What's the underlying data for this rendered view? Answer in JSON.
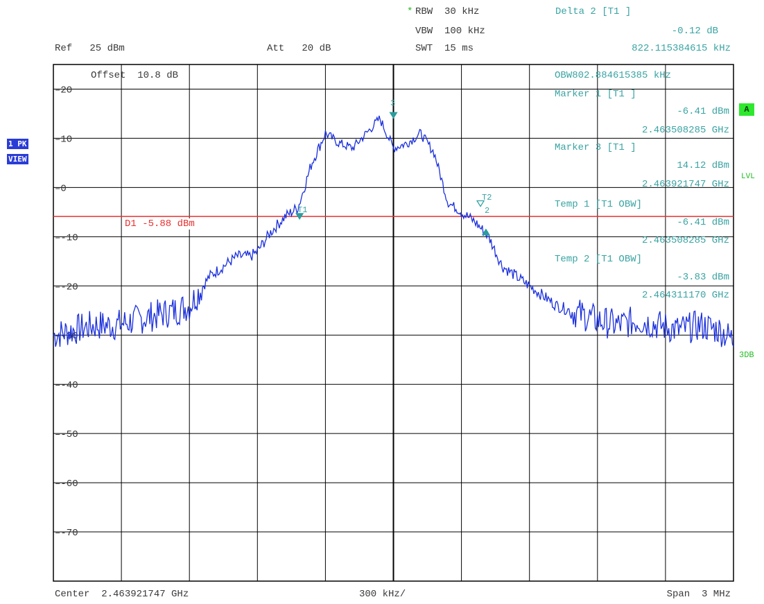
{
  "header": {
    "rbw_star": "*",
    "rbw": "RBW  30 kHz",
    "vbw": "VBW  100 kHz",
    "swt": "SWT  15 ms",
    "ref": "Ref   25 dBm",
    "att": "Att   20 dB"
  },
  "marker_panel": {
    "delta_title": "Delta 2 [T1 ]",
    "delta_value": "-0.12 dB",
    "delta_freq": "822.115384615 kHz",
    "obw": "OBW802.884615385 kHz",
    "m1_title": "Marker 1 [T1 ]",
    "m1_value": "-6.41 dBm",
    "m1_freq": "2.463508285 GHz",
    "m3_title": "Marker 3 [T1 ]",
    "m3_value": "14.12 dBm",
    "m3_freq": "2.463921747 GHz",
    "t1_title": "Temp 1 [T1 OBW]",
    "t1_value": "-6.41 dBm",
    "t1_freq": "2.463508285 GHz",
    "t2_title": "Temp 2 [T1 OBW]",
    "t2_value": "-3.83 dBm",
    "t2_freq": "2.464311170 GHz"
  },
  "plot_labels": {
    "offset": "Offset  10.8 dB",
    "display_line": "D1 -5.88 dBm",
    "marker_3": "3",
    "marker_t1": "T1",
    "marker_t2": "T2",
    "marker_2": "2"
  },
  "side": {
    "trace_mode": "1 PK",
    "view": "VIEW",
    "a_badge": "A",
    "lvl": "LVL",
    "db3": "3DB"
  },
  "footer": {
    "center": "Center  2.463921747 GHz",
    "div": "300 kHz/",
    "span": "Span  3 MHz"
  },
  "chart_data": {
    "type": "line",
    "xlabel": "",
    "ylabel": "",
    "xlim_hz": [
      2462421747,
      2465421747
    ],
    "ylim": [
      -80,
      25
    ],
    "yticks": [
      20,
      10,
      0,
      -10,
      -20,
      -30,
      -40,
      -50,
      -60,
      -70
    ],
    "ytick_labels": [
      "20",
      "10",
      "0",
      "-10",
      "-20",
      "-30",
      "-40",
      "-50",
      "-60",
      "-70"
    ],
    "grid": true,
    "display_line_dbm": -5.88,
    "trace_color": "#1a2fdc",
    "display_line_color": "#e83030",
    "series": [
      {
        "values_x_div": [
          0,
          0.3,
          0.6,
          0.9,
          1.2,
          1.5,
          1.8,
          2.0,
          2.1,
          2.2,
          2.3,
          2.5,
          2.7,
          2.9,
          3.0,
          3.2,
          3.4,
          3.5,
          3.6,
          3.8,
          4.0,
          4.2,
          4.4,
          4.6,
          4.8,
          5.0,
          5.2,
          5.4,
          5.6,
          5.8,
          6.0,
          6.2,
          6.4,
          6.6,
          6.8,
          7.0,
          7.2,
          7.4,
          7.6,
          7.8,
          8.0,
          8.3,
          8.6,
          8.9,
          9.2,
          9.5,
          9.8,
          10.0
        ],
        "values_dbm": [
          -30,
          -29,
          -28,
          -28,
          -27,
          -26,
          -25,
          -24,
          -22,
          -20,
          -18,
          -16,
          -14,
          -14,
          -13,
          -9,
          -6,
          -5,
          -4,
          5,
          11,
          9,
          8,
          11,
          14,
          8,
          9,
          11,
          7,
          -3,
          -5,
          -7,
          -10,
          -16,
          -18,
          -20,
          -22,
          -24,
          -25,
          -26,
          -27,
          -28,
          -27,
          -28,
          -29,
          -28,
          -29,
          -31
        ]
      }
    ]
  }
}
